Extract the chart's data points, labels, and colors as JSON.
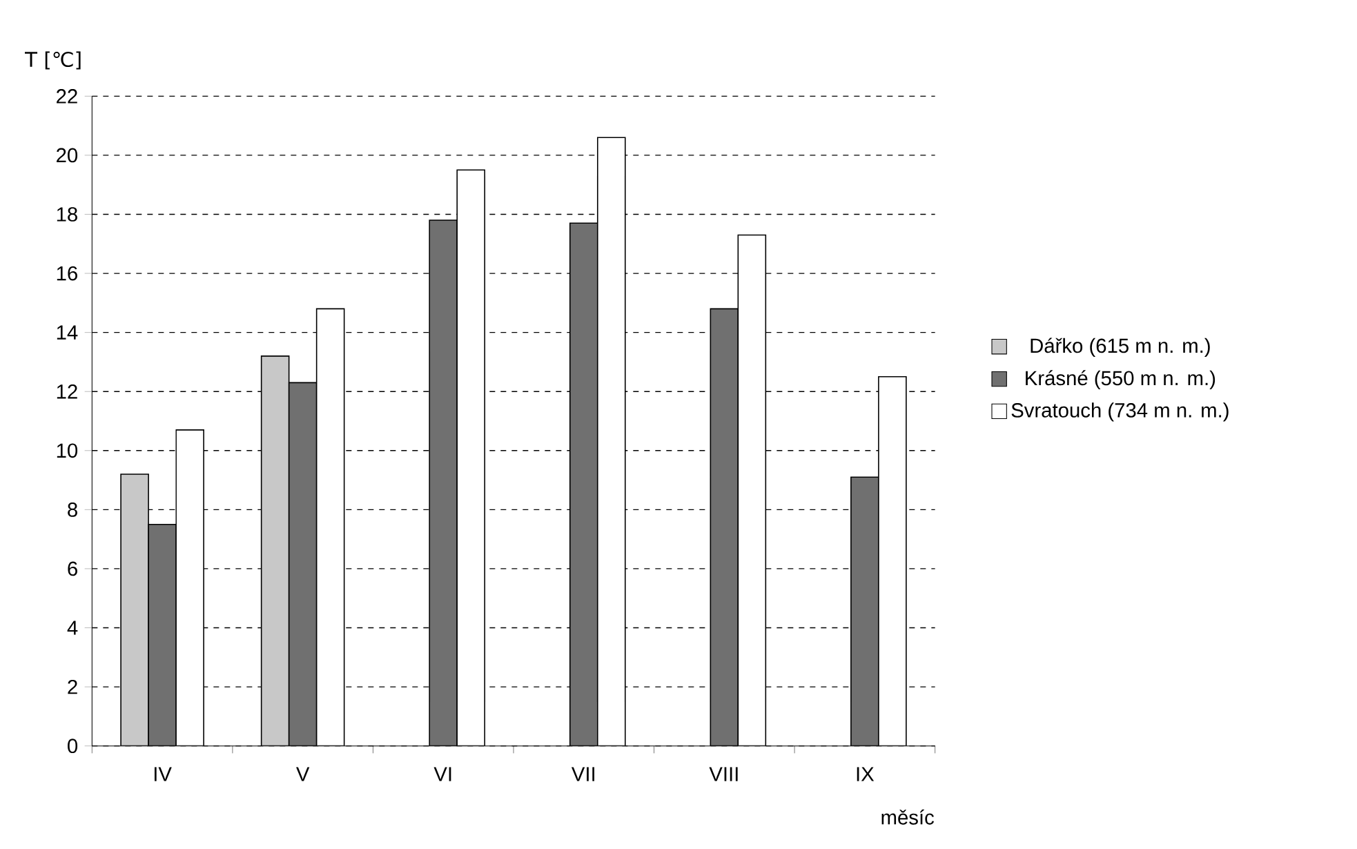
{
  "chart_data": {
    "type": "bar",
    "xlabel": "měsíc",
    "ylabel": "T [℃]",
    "categories": [
      "IV",
      "V",
      "VI",
      "VII",
      "VIII",
      "IX"
    ],
    "series": [
      {
        "name": "Dářko (615 m n. m.)",
        "color": "#c8c8c8",
        "values": [
          9.2,
          13.2,
          null,
          null,
          null,
          null
        ]
      },
      {
        "name": "Krásné (550 m n. m.)",
        "color": "#707070",
        "values": [
          7.5,
          12.3,
          17.8,
          17.7,
          14.8,
          9.1
        ]
      },
      {
        "name": "Svratouch (734 m n. m.)",
        "color": "#ffffff",
        "values": [
          10.7,
          14.8,
          19.5,
          20.6,
          17.3,
          12.5
        ]
      }
    ],
    "ylim": [
      0,
      22
    ],
    "yticks": [
      0,
      2,
      4,
      6,
      8,
      10,
      12,
      14,
      16,
      18,
      20,
      22
    ],
    "grid": "y",
    "legend": "right"
  }
}
